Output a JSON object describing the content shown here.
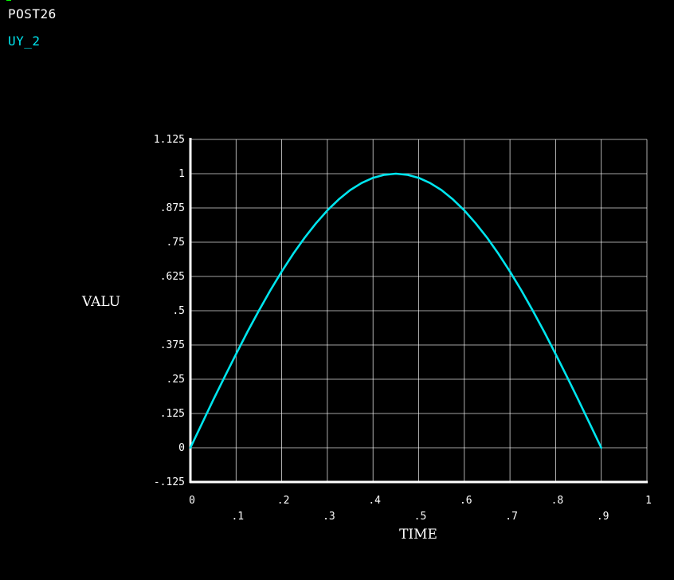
{
  "header": {
    "title": "POST26",
    "series_label": "UY_2"
  },
  "colors": {
    "background": "#000000",
    "grid": "#ffffff",
    "text": "#ffffff",
    "series": "#00e5ee",
    "corner_mark": "#00ff00"
  },
  "chart_data": {
    "type": "line",
    "title": "",
    "xlabel": "TIME",
    "ylabel": "VALU",
    "xlim": [
      0,
      1
    ],
    "ylim": [
      -0.125,
      1.125
    ],
    "grid": true,
    "x_ticks": [
      {
        "value": 0,
        "label": "0"
      },
      {
        "value": 0.1,
        "label": ".1"
      },
      {
        "value": 0.2,
        "label": ".2"
      },
      {
        "value": 0.3,
        "label": ".3"
      },
      {
        "value": 0.4,
        "label": ".4"
      },
      {
        "value": 0.5,
        "label": ".5"
      },
      {
        "value": 0.6,
        "label": ".6"
      },
      {
        "value": 0.7,
        "label": ".7"
      },
      {
        "value": 0.8,
        "label": ".8"
      },
      {
        "value": 0.9,
        "label": ".9"
      },
      {
        "value": 1,
        "label": "1"
      }
    ],
    "y_ticks": [
      {
        "value": -0.125,
        "label": "-.125"
      },
      {
        "value": 0,
        "label": "0"
      },
      {
        "value": 0.125,
        "label": ".125"
      },
      {
        "value": 0.25,
        "label": ".25"
      },
      {
        "value": 0.375,
        "label": ".375"
      },
      {
        "value": 0.5,
        "label": ".5"
      },
      {
        "value": 0.625,
        "label": ".625"
      },
      {
        "value": 0.75,
        "label": ".75"
      },
      {
        "value": 0.875,
        "label": ".875"
      },
      {
        "value": 1,
        "label": "1"
      },
      {
        "value": 1.125,
        "label": "1.125"
      }
    ],
    "series": [
      {
        "name": "UY_2",
        "color": "#00e5ee",
        "x": [
          0,
          0.025,
          0.05,
          0.075,
          0.1,
          0.125,
          0.15,
          0.175,
          0.2,
          0.225,
          0.25,
          0.275,
          0.3,
          0.325,
          0.35,
          0.375,
          0.4,
          0.425,
          0.45,
          0.475,
          0.5,
          0.525,
          0.55,
          0.575,
          0.6,
          0.625,
          0.65,
          0.675,
          0.7,
          0.725,
          0.75,
          0.775,
          0.8,
          0.825,
          0.85,
          0.875,
          0.9
        ],
        "y": [
          0,
          0.087,
          0.174,
          0.259,
          0.342,
          0.423,
          0.5,
          0.574,
          0.643,
          0.707,
          0.766,
          0.819,
          0.866,
          0.906,
          0.94,
          0.966,
          0.985,
          0.996,
          1.0,
          0.996,
          0.985,
          0.966,
          0.94,
          0.906,
          0.866,
          0.819,
          0.766,
          0.707,
          0.643,
          0.574,
          0.5,
          0.423,
          0.342,
          0.259,
          0.174,
          0.087,
          0
        ]
      }
    ]
  }
}
